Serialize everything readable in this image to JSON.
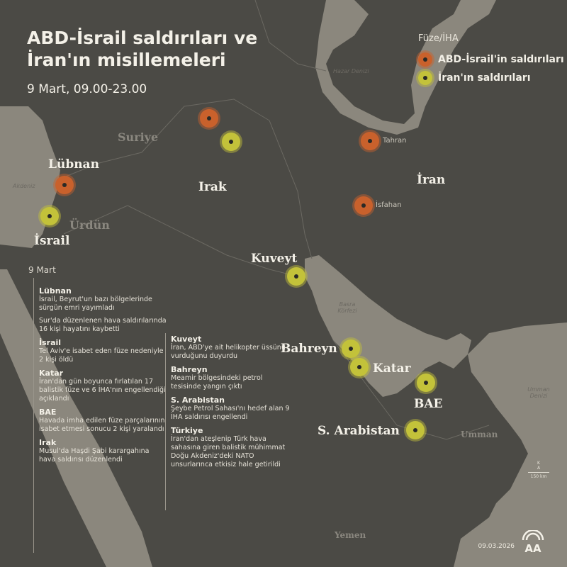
{
  "header": {
    "title": "ABD-İsrail saldırıları ve İran'ın misillemeleri",
    "subtitle": "9 Mart, 09.00-23.00"
  },
  "legend": {
    "title": "Füze/İHA",
    "items": [
      {
        "label": "ABD-İsrail'in saldırıları",
        "color": "#c9612c",
        "kind": "us"
      },
      {
        "label": "İran'ın saldırıları",
        "color": "#c3c23a",
        "kind": "ir"
      }
    ]
  },
  "map": {
    "countries": {
      "suriye": "Suriye",
      "lubnan": "Lübnan",
      "irak": "Irak",
      "iran": "İran",
      "urdun": "Ürdün",
      "israil": "İsrail",
      "kuveyt": "Kuveyt",
      "bahreyn": "Bahreyn",
      "katar": "Katar",
      "bae": "BAE",
      "s_arabistan": "S. Arabistan",
      "umman": "Umman",
      "yemen": "Yemen"
    },
    "seas": {
      "hazar": "Hazar Denizi",
      "akdeniz": "Akdeniz",
      "basra": "Basra Körfezi",
      "umman_denizi": "Umman Denizi"
    },
    "cities": {
      "tahran": "Tahran",
      "isfahan": "İsfahan"
    },
    "markers": [
      {
        "place": "Irak (kuzey)",
        "kind": "us"
      },
      {
        "place": "Irak (Erbil)",
        "kind": "ir"
      },
      {
        "place": "Lübnan",
        "kind": "us"
      },
      {
        "place": "İsrail",
        "kind": "ir"
      },
      {
        "place": "Tahran",
        "kind": "us"
      },
      {
        "place": "İsfahan",
        "kind": "us"
      },
      {
        "place": "Kuveyt",
        "kind": "ir"
      },
      {
        "place": "Bahreyn",
        "kind": "ir"
      },
      {
        "place": "Katar",
        "kind": "ir"
      },
      {
        "place": "BAE",
        "kind": "ir"
      },
      {
        "place": "S. Arabistan",
        "kind": "ir"
      }
    ],
    "scale": {
      "north_top": "K",
      "north_bottom": "A",
      "label": "150 km"
    }
  },
  "timeline": {
    "date": "9 Mart",
    "col1": [
      {
        "country": "Lübnan",
        "texts": [
          "İsrail, Beyrut'un bazı bölgelerinde sürgün emri yayımladı",
          "Sur'da düzenlenen hava saldırılarında 16 kişi hayatını kaybetti"
        ]
      },
      {
        "country": "İsrail",
        "texts": [
          "Tel Aviv'e isabet eden füze nedeniyle 2 kişi öldü"
        ]
      },
      {
        "country": "Katar",
        "texts": [
          "İran'dan gün boyunca fırlatılan 17 balistik füze ve 6 İHA'nın engellendiği açıklandı"
        ]
      },
      {
        "country": "BAE",
        "texts": [
          "Havada imha edilen füze parçalarının isabet etmesi sonucu 2 kişi yaralandı"
        ]
      },
      {
        "country": "Irak",
        "texts": [
          "Musul'da Haşdi Şabi karargahına hava saldırısı düzenlendi"
        ]
      }
    ],
    "col2": [
      {
        "country": "Kuveyt",
        "texts": [
          "İran, ABD'ye ait helikopter üssünü vurduğunu duyurdu"
        ]
      },
      {
        "country": "Bahreyn",
        "texts": [
          "Meamir bölgesindeki petrol tesisinde yangın çıktı"
        ]
      },
      {
        "country": "S. Arabistan",
        "texts": [
          "Şeybe Petrol Sahası'nı hedef alan 9 İHA saldırısı engellendi"
        ]
      },
      {
        "country": "Türkiye",
        "texts": [
          "İran'dan ateşlenip Türk hava sahasına giren balistik mühimmat Doğu Akdeniz'deki NATO unsurlarınca etkisiz hale getirildi"
        ]
      }
    ]
  },
  "footer": {
    "date": "09.03.2026",
    "logo": "AA"
  },
  "colors": {
    "land": "#4b4a45",
    "sea": "#8b877d",
    "us": "#c9612c",
    "iran": "#c3c23a"
  }
}
